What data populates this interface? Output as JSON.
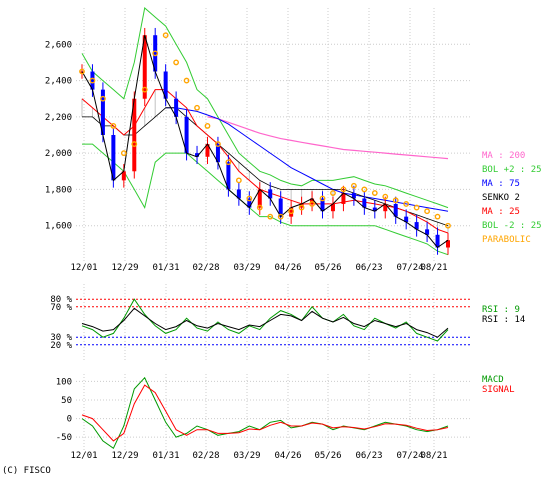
{
  "credit": "(C) FISCO",
  "date_labels": [
    "12/01",
    "12/29",
    "01/31",
    "02/28",
    "03/29",
    "04/26",
    "05/26",
    "06/23",
    "07/24",
    "08/21"
  ],
  "colors": {
    "candle_up": "#ff0000",
    "candle_down": "#0000ff",
    "price_line": "#000000",
    "ma200": "#ff66cc",
    "ma75": "#0000ff",
    "ma25": "#ff0000",
    "bollinger": "#33cc33",
    "cloud": "#999999",
    "parabolic": "#ffa500",
    "rsi9": "#009900",
    "rsi14": "#000000",
    "macd": "#009900",
    "signal": "#ff0000",
    "rsi_hi": "#ff0000",
    "rsi_lo": "#0000ff",
    "grid": "#cccccc"
  },
  "chart_data": [
    {
      "type": "line",
      "panel": "price",
      "ylim": [
        1400,
        2800
      ],
      "y_ticks": [
        "2,600",
        "2,400",
        "2,200",
        "2,000",
        "1,800",
        "1,600"
      ],
      "y_tick_values": [
        2600,
        2400,
        2200,
        2000,
        1800,
        1600
      ],
      "legend": [
        {
          "label": "MA : 200",
          "color": "#ff66cc"
        },
        {
          "label": "BOL +2 : 25",
          "color": "#33cc33"
        },
        {
          "label": "MA : 75",
          "color": "#0000ff"
        },
        {
          "label": "SENKO 2",
          "color": "#000000"
        },
        {
          "label": "MA : 25",
          "color": "#ff0000"
        },
        {
          "label": "BOL -2 : 25",
          "color": "#33cc33"
        },
        {
          "label": "PARABOLIC",
          "color": "#ffa500"
        }
      ],
      "series": [
        {
          "key": "close",
          "values": [
            2450,
            2350,
            2100,
            1850,
            1900,
            2300,
            2650,
            2450,
            2300,
            2200,
            2000,
            1980,
            2050,
            1950,
            1800,
            1750,
            1700,
            1800,
            1750,
            1650,
            1700,
            1720,
            1750,
            1680,
            1720,
            1780,
            1750,
            1700,
            1680,
            1720,
            1650,
            1620,
            1580,
            1550,
            1480,
            1520
          ]
        },
        {
          "key": "ma25",
          "values": [
            2300,
            2250,
            2200,
            2150,
            2100,
            2150,
            2250,
            2350,
            2350,
            2300,
            2250,
            2150,
            2100,
            2050,
            1980,
            1900,
            1850,
            1800,
            1780,
            1760,
            1740,
            1720,
            1720,
            1720,
            1720,
            1730,
            1740,
            1730,
            1720,
            1710,
            1700,
            1680,
            1650,
            1620,
            1580,
            1560
          ]
        },
        {
          "key": "ma75",
          "values": [
            null,
            null,
            null,
            null,
            null,
            null,
            null,
            null,
            2250,
            2250,
            2240,
            2230,
            2210,
            2190,
            2160,
            2120,
            2080,
            2040,
            2000,
            1960,
            1920,
            1890,
            1860,
            1830,
            1800,
            1780,
            1770,
            1760,
            1750,
            1740,
            1730,
            1720,
            1710,
            1700,
            1690,
            1680
          ]
        },
        {
          "key": "ma200",
          "values": [
            null,
            null,
            null,
            null,
            null,
            null,
            null,
            null,
            null,
            null,
            null,
            null,
            2200,
            2190,
            2170,
            2150,
            2130,
            2110,
            2095,
            2080,
            2070,
            2060,
            2050,
            2040,
            2030,
            2020,
            2015,
            2010,
            2005,
            2000,
            1995,
            1990,
            1985,
            1980,
            1975,
            1970
          ]
        },
        {
          "key": "bol_up",
          "values": [
            2550,
            2450,
            2400,
            2350,
            2300,
            2500,
            2800,
            2750,
            2700,
            2600,
            2500,
            2350,
            2300,
            2200,
            2100,
            2000,
            1950,
            1900,
            1880,
            1850,
            1830,
            1820,
            1850,
            1850,
            1850,
            1860,
            1870,
            1850,
            1830,
            1820,
            1800,
            1780,
            1760,
            1740,
            1720,
            1700
          ]
        },
        {
          "key": "bol_dn",
          "values": [
            2050,
            2050,
            2000,
            1950,
            1900,
            1800,
            1700,
            1950,
            2000,
            2000,
            2000,
            1950,
            1900,
            1850,
            1800,
            1750,
            1700,
            1650,
            1650,
            1620,
            1600,
            1600,
            1600,
            1600,
            1600,
            1600,
            1600,
            1600,
            1600,
            1580,
            1560,
            1540,
            1520,
            1500,
            1460,
            1440
          ]
        },
        {
          "key": "senko2",
          "values": [
            2200,
            2200,
            2150,
            2150,
            2100,
            2100,
            2150,
            2200,
            2250,
            2250,
            2200,
            2150,
            2100,
            2050,
            2000,
            1950,
            1900,
            1850,
            1820,
            1800,
            1800,
            1800,
            1800,
            1800,
            1800,
            1800,
            1780,
            1760,
            1740,
            1720,
            1700,
            1680,
            1660,
            1640,
            1620,
            1600
          ]
        },
        {
          "key": "parabolic",
          "values": [
            2450,
            2400,
            2300,
            2150,
            2000,
            2050,
            2350,
            2550,
            2650,
            2500,
            2400,
            2250,
            2150,
            2050,
            1950,
            1850,
            1750,
            1700,
            1650,
            1650,
            1680,
            1700,
            1720,
            1750,
            1780,
            1800,
            1820,
            1800,
            1780,
            1760,
            1740,
            1720,
            1700,
            1680,
            1650,
            1600
          ]
        }
      ]
    },
    {
      "type": "line",
      "panel": "rsi",
      "ylim": [
        0,
        100
      ],
      "y_ticks": [
        "80 %",
        "70 %",
        "30 %",
        "20 %"
      ],
      "y_tick_values": [
        80,
        70,
        30,
        20
      ],
      "legend": [
        {
          "label": "RSI : 9",
          "color": "#009900"
        },
        {
          "label": "RSI : 14",
          "color": "#000000"
        }
      ],
      "series": [
        {
          "key": "rsi9",
          "values": [
            45,
            40,
            30,
            35,
            55,
            80,
            60,
            45,
            35,
            40,
            55,
            42,
            38,
            50,
            40,
            35,
            45,
            40,
            55,
            65,
            60,
            52,
            70,
            55,
            50,
            60,
            45,
            40,
            55,
            48,
            42,
            50,
            35,
            30,
            25,
            40
          ]
        },
        {
          "key": "rsi14",
          "values": [
            48,
            44,
            38,
            40,
            52,
            68,
            58,
            48,
            40,
            44,
            52,
            45,
            42,
            48,
            44,
            40,
            46,
            44,
            52,
            60,
            58,
            52,
            64,
            55,
            50,
            56,
            48,
            44,
            52,
            48,
            44,
            48,
            40,
            36,
            30,
            42
          ]
        }
      ]
    },
    {
      "type": "line",
      "panel": "macd",
      "ylim": [
        -90,
        120
      ],
      "y_ticks": [
        "100",
        "50",
        "0",
        "-50"
      ],
      "y_tick_values": [
        100,
        50,
        0,
        -50
      ],
      "legend": [
        {
          "label": "MACD",
          "color": "#009900"
        },
        {
          "label": "SIGNAL",
          "color": "#ff0000"
        }
      ],
      "series": [
        {
          "key": "macd",
          "values": [
            0,
            -20,
            -60,
            -80,
            -20,
            80,
            110,
            50,
            -10,
            -50,
            -40,
            -20,
            -30,
            -45,
            -40,
            -35,
            -20,
            -30,
            -10,
            -5,
            -25,
            -20,
            -10,
            -15,
            -30,
            -20,
            -25,
            -30,
            -20,
            -10,
            -15,
            -20,
            -30,
            -35,
            -30,
            -20
          ]
        },
        {
          "key": "signal",
          "values": [
            10,
            0,
            -30,
            -60,
            -40,
            40,
            90,
            70,
            20,
            -30,
            -45,
            -30,
            -30,
            -40,
            -40,
            -38,
            -28,
            -30,
            -18,
            -10,
            -20,
            -20,
            -12,
            -15,
            -25,
            -22,
            -24,
            -28,
            -22,
            -14,
            -15,
            -18,
            -26,
            -32,
            -30,
            -24
          ]
        }
      ]
    }
  ]
}
